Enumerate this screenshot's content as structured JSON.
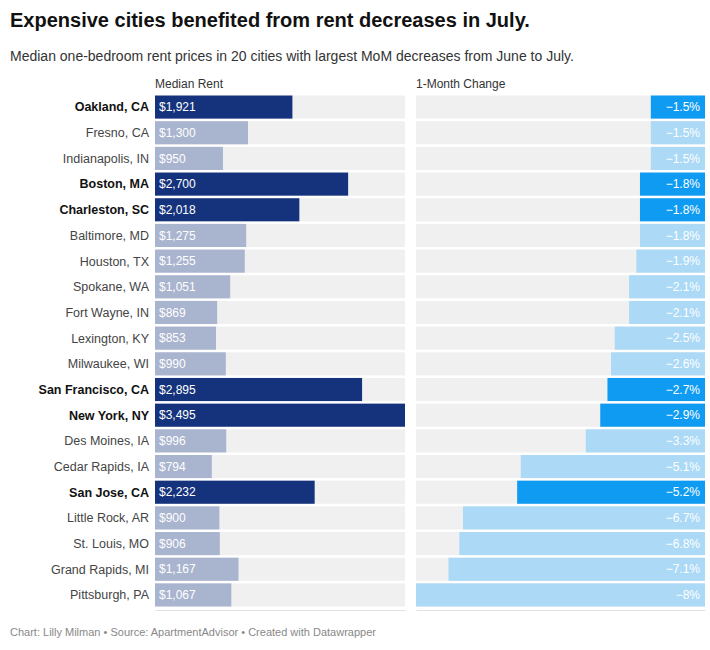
{
  "chart_data": [
    {
      "type": "bar",
      "orientation": "horizontal",
      "title": "Expensive cities benefited from rent decreases in July.",
      "subtitle": "Median one-bedroom rent prices in 20 cities with largest MoM decreases from June to July.",
      "x_label": "Median Rent",
      "source": "Chart: Lilly Milman • Source: ApartmentAdvisor • Created with Datawrapper",
      "categories": [
        "Oakland, CA",
        "Fresno, CA",
        "Indianapolis, IN",
        "Boston, MA",
        "Charleston, SC",
        "Baltimore, MD",
        "Houston, TX",
        "Spokane, WA",
        "Fort Wayne, IN",
        "Lexington, KY",
        "Milwaukee, WI",
        "San Francisco, CA",
        "New York, NY",
        "Des Moines, IA",
        "Cedar Rapids, IA",
        "San Jose, CA",
        "Little Rock, AR",
        "St. Louis, MO",
        "Grand Rapids, MI",
        "Pittsburgh, PA"
      ],
      "values": [
        1921,
        1300,
        950,
        2700,
        2018,
        1275,
        1255,
        1051,
        869,
        853,
        990,
        2895,
        3495,
        996,
        794,
        2232,
        900,
        906,
        1167,
        1067
      ],
      "value_labels": [
        "$1,921",
        "$1,300",
        "$950",
        "$2,700",
        "$2,018",
        "$1,275",
        "$1,255",
        "$1,051",
        "$869",
        "$853",
        "$990",
        "$2,895",
        "$3,495",
        "$996",
        "$794",
        "$2,232",
        "$900",
        "$906",
        "$1,167",
        "$1,067"
      ],
      "colors": [
        "#15337c",
        "#a9b4cf",
        "#a9b4cf",
        "#15337c",
        "#15337c",
        "#a9b4cf",
        "#a9b4cf",
        "#a9b4cf",
        "#a9b4cf",
        "#a9b4cf",
        "#a9b4cf",
        "#15337c",
        "#15337c",
        "#a9b4cf",
        "#a9b4cf",
        "#15337c",
        "#a9b4cf",
        "#a9b4cf",
        "#a9b4cf",
        "#a9b4cf"
      ],
      "xlim": [
        0,
        3495
      ],
      "data_labels": true,
      "tick_labels": false,
      "grid": false
    },
    {
      "type": "bar",
      "orientation": "horizontal",
      "x_label": "1-Month Change",
      "values": [
        -1.5,
        -1.5,
        -1.5,
        -1.8,
        -1.8,
        -1.8,
        -1.9,
        -2.1,
        -2.1,
        -2.5,
        -2.6,
        -2.7,
        -2.9,
        -3.3,
        -5.1,
        -5.2,
        -6.7,
        -6.8,
        -7.1,
        -8
      ],
      "value_labels": [
        "−1.5%",
        "−1.5%",
        "−1.5%",
        "−1.8%",
        "−1.8%",
        "−1.8%",
        "−1.9%",
        "−2.1%",
        "−2.1%",
        "−2.5%",
        "−2.6%",
        "−2.7%",
        "−2.9%",
        "−3.3%",
        "−5.1%",
        "−5.2%",
        "−6.7%",
        "−6.8%",
        "−7.1%",
        "−8%"
      ],
      "colors": [
        "#0f9bf2",
        "#abd9f6",
        "#abd9f6",
        "#0f9bf2",
        "#0f9bf2",
        "#abd9f6",
        "#abd9f6",
        "#abd9f6",
        "#abd9f6",
        "#abd9f6",
        "#abd9f6",
        "#0f9bf2",
        "#0f9bf2",
        "#abd9f6",
        "#abd9f6",
        "#0f9bf2",
        "#abd9f6",
        "#abd9f6",
        "#abd9f6",
        "#abd9f6"
      ],
      "xlim": [
        -8,
        0
      ],
      "data_labels": true,
      "tick_labels": false,
      "grid": false
    }
  ]
}
